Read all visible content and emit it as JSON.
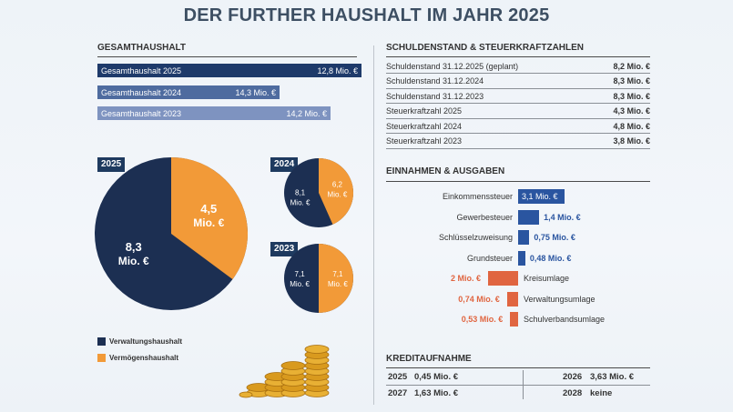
{
  "title": "DER FURTHER HAUSHALT IM JAHR 2025",
  "colors": {
    "navy": "#1c2f52",
    "orange": "#f29a38",
    "bar2025": "#1e3a6a",
    "bar2024": "#4e6b9f",
    "bar2023": "#7e93c0",
    "red": "#e06540",
    "ieblue": "#2a55a0"
  },
  "gesamthaushalt": {
    "heading": "GESAMTHAUSHALT",
    "bars": [
      {
        "label": "Gesamthaushalt 2025",
        "value_text": "12,8 Mio. €",
        "value": 12.8
      },
      {
        "label": "Gesamthaushalt 2024",
        "value_text": "14,3 Mio. €",
        "value": 14.3
      },
      {
        "label": "Gesamthaushalt 2023",
        "value_text": "14,2 Mio. €",
        "value": 14.2
      }
    ]
  },
  "chart_data": [
    {
      "type": "bar",
      "title": "GESAMTHAUSHALT",
      "categories": [
        "Gesamthaushalt 2025",
        "Gesamthaushalt 2024",
        "Gesamthaushalt 2023"
      ],
      "values": [
        12.8,
        14.3,
        14.2
      ],
      "unit": "Mio. €"
    },
    {
      "type": "pie",
      "title": "2025",
      "series": [
        {
          "name": "Verwaltungshaushalt",
          "value": 8.3,
          "label_line1": "8,3",
          "label_line2": "Mio. €"
        },
        {
          "name": "Vermögenshaushalt",
          "value": 4.5,
          "label_line1": "4,5",
          "label_line2": "Mio. €"
        }
      ]
    },
    {
      "type": "pie",
      "title": "2024",
      "series": [
        {
          "name": "Verwaltungshaushalt",
          "value": 8.1,
          "label_line1": "8,1",
          "label_line2": "Mio. €"
        },
        {
          "name": "Vermögenshaushalt",
          "value": 6.2,
          "label_line1": "6,2",
          "label_line2": "Mio. €"
        }
      ]
    },
    {
      "type": "pie",
      "title": "2023",
      "series": [
        {
          "name": "Verwaltungshaushalt",
          "value": 7.1,
          "label_line1": "7,1",
          "label_line2": "Mio. €"
        },
        {
          "name": "Vermögenshaushalt",
          "value": 7.1,
          "label_line1": "7,1",
          "label_line2": "Mio. €"
        }
      ]
    },
    {
      "type": "bar",
      "title": "EINNAHMEN & AUSGABEN",
      "unit": "Mio. €",
      "items": [
        {
          "label": "Einkommenssteuer",
          "value": 3.1,
          "value_text": "3,1 Mio. €"
        },
        {
          "label": "Gewerbesteuer",
          "value": 1.4,
          "value_text": "1,4 Mio. €"
        },
        {
          "label": "Schlüsselzuweisung",
          "value": 0.75,
          "value_text": "0,75 Mio. €"
        },
        {
          "label": "Grundsteuer",
          "value": 0.48,
          "value_text": "0,48 Mio. €"
        },
        {
          "label": "Kreisumlage",
          "value": -2,
          "value_text": "2 Mio. €"
        },
        {
          "label": "Verwaltungsumlage",
          "value": -0.74,
          "value_text": "0,74 Mio. €"
        },
        {
          "label": "Schulverbandsumlage",
          "value": -0.53,
          "value_text": "0,53 Mio. €"
        }
      ]
    }
  ],
  "legend": [
    {
      "label": "Verwaltungshaushalt",
      "color": "#1c2f52"
    },
    {
      "label": "Vermögenshaushalt",
      "color": "#f29a38"
    }
  ],
  "schulden": {
    "heading": "SCHULDENSTAND & STEUERKRAFTZAHLEN",
    "rows": [
      {
        "label": "Schuldenstand 31.12.2025 (geplant)",
        "value": "8,2 Mio. €"
      },
      {
        "label": "Schuldenstand 31.12.2024",
        "value": "8,3 Mio. €"
      },
      {
        "label": "Schuldenstand 31.12.2023",
        "value": "8,3 Mio. €"
      },
      {
        "label": "Steuerkraftzahl 2025",
        "value": "4,3 Mio. €"
      },
      {
        "label": "Steuerkraftzahl 2024",
        "value": "4,8 Mio. €"
      },
      {
        "label": "Steuerkraftzahl 2023",
        "value": "3,8 Mio. €"
      }
    ]
  },
  "einnahmen": {
    "heading": "EINNAHMEN & AUSGABEN"
  },
  "kredit": {
    "heading": "KREDITAUFNAHME",
    "items": [
      {
        "year": "2025",
        "value": "0,45 Mio. €"
      },
      {
        "year": "2026",
        "value": "3,63 Mio. €"
      },
      {
        "year": "2027",
        "value": "1,63 Mio. €"
      },
      {
        "year": "2028",
        "value": "keine"
      }
    ]
  }
}
